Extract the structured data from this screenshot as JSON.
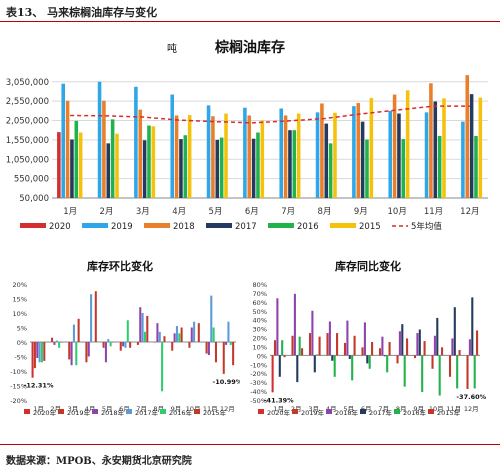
{
  "header": {
    "caption": "表13、 马来棕榈油库存与变化"
  },
  "footer": {
    "source": "数据来源：MPOB、永安期货北京研究院"
  },
  "chart_data": [
    {
      "type": "bar",
      "title": "棕榈油库存",
      "unit": "吨",
      "categories": [
        "1月",
        "2月",
        "3月",
        "4月",
        "5月",
        "6月",
        "7月",
        "8月",
        "9月",
        "10月",
        "11月",
        "12月"
      ],
      "ylim": [
        50000,
        3250000
      ],
      "yticks": [
        50000,
        550000,
        1050000,
        1550000,
        2050000,
        2550000,
        3050000
      ],
      "yticklabels": [
        "50,000",
        "550,000",
        "1,050,000",
        "1,550,000",
        "2,050,000",
        "2,550,000",
        "3,050,000"
      ],
      "legend_position": "bottom",
      "series": [
        {
          "name": "2020",
          "color": "#d42e2e",
          "type": "bar",
          "values": [
            1750000,
            null,
            null,
            null,
            null,
            null,
            null,
            null,
            null,
            null,
            null,
            null
          ]
        },
        {
          "name": "2019",
          "color": "#2ea6e8",
          "type": "bar",
          "values": [
            3000000,
            3050000,
            2920000,
            2720000,
            2440000,
            2380000,
            2360000,
            2260000,
            2420000,
            2300000,
            2260000,
            2020000
          ]
        },
        {
          "name": "2018",
          "color": "#e97f2a",
          "type": "bar",
          "values": [
            2560000,
            2560000,
            2330000,
            2180000,
            2160000,
            2180000,
            2180000,
            2490000,
            2500000,
            2720000,
            3010000,
            3220000
          ]
        },
        {
          "name": "2017",
          "color": "#243a5e",
          "type": "bar",
          "values": [
            1560000,
            1460000,
            1540000,
            1570000,
            1550000,
            1580000,
            1800000,
            1970000,
            2020000,
            2230000,
            2540000,
            2730000
          ]
        },
        {
          "name": "2016",
          "color": "#22b24c",
          "type": "bar",
          "values": [
            2040000,
            2080000,
            1920000,
            1670000,
            1610000,
            1740000,
            1800000,
            1460000,
            1560000,
            1570000,
            1650000,
            1650000
          ]
        },
        {
          "name": "2015",
          "color": "#f4c20d",
          "type": "bar",
          "values": [
            1740000,
            1710000,
            1900000,
            2190000,
            2230000,
            2050000,
            2230000,
            2250000,
            2630000,
            2830000,
            2620000,
            2640000
          ]
        },
        {
          "name": "5年均值",
          "color": "#d42e2e",
          "type": "line",
          "dashed": true,
          "values": [
            2180000,
            2170000,
            2140000,
            2060000,
            2020000,
            1990000,
            2040000,
            2100000,
            2220000,
            2320000,
            2420000,
            2420000
          ]
        }
      ]
    },
    {
      "type": "bar",
      "title": "库存环比变化",
      "categories": [
        "1月",
        "2月",
        "3月",
        "4月",
        "5月",
        "6月",
        "7月",
        "8月",
        "9月",
        "10月",
        "11月",
        "12月"
      ],
      "ylim": [
        -0.2,
        0.2
      ],
      "yticks": [
        -0.2,
        -0.15,
        -0.1,
        -0.05,
        0.0,
        0.05,
        0.1,
        0.15,
        0.2
      ],
      "yticklabels": [
        "-20%",
        "-15%",
        "-10%",
        "-5%",
        "0%",
        "5%",
        "10%",
        "15%",
        "20%"
      ],
      "legend_position": "bottom",
      "annotations": [
        {
          "text": "-12.31%",
          "category": "1月",
          "value": -0.1231
        },
        {
          "text": "-10.99%",
          "category": "12月",
          "value": -0.1099
        }
      ],
      "series": [
        {
          "name": "2020年",
          "color": "#d42e2e",
          "values": [
            -0.1231,
            null,
            null,
            null,
            null,
            null,
            null,
            null,
            null,
            null,
            null,
            null
          ]
        },
        {
          "name": "2019年",
          "color": "#c0392b",
          "values": [
            -0.09,
            0.015,
            -0.06,
            -0.07,
            -0.02,
            -0.03,
            -0.01,
            0.0,
            -0.03,
            -0.02,
            -0.04,
            -0.1099
          ]
        },
        {
          "name": "2018年",
          "color": "#8e44ad",
          "values": [
            -0.055,
            -0.01,
            -0.08,
            -0.05,
            -0.07,
            -0.015,
            0.12,
            0.065,
            0.03,
            0.05,
            -0.045,
            -0.01
          ]
        },
        {
          "name": "2017年",
          "color": "#5b9bd5",
          "values": [
            -0.07,
            0.005,
            0.06,
            0.165,
            0.01,
            -0.02,
            0.1,
            0.035,
            0.055,
            0.07,
            0.16,
            0.07
          ]
        },
        {
          "name": "2016年",
          "color": "#2ecc71",
          "values": [
            -0.07,
            -0.02,
            -0.08,
            0.0,
            -0.015,
            0.075,
            0.035,
            -0.17,
            0.03,
            0.0,
            0.05,
            -0.01
          ]
        },
        {
          "name": "2015年",
          "color": "#c0392b",
          "values": [
            -0.065,
            0.0,
            0.08,
            0.175,
            0.0,
            -0.02,
            0.09,
            0.02,
            0.05,
            0.065,
            -0.07,
            -0.08
          ]
        }
      ]
    },
    {
      "type": "bar",
      "title": "库存同比变化",
      "categories": [
        "1月",
        "2月",
        "3月",
        "4月",
        "5月",
        "6月",
        "7月",
        "8月",
        "9月",
        "10月",
        "11月",
        "12月"
      ],
      "ylim": [
        -0.5,
        0.8
      ],
      "yticks": [
        -0.5,
        -0.4,
        -0.3,
        -0.2,
        -0.1,
        0.0,
        0.1,
        0.2,
        0.3,
        0.4,
        0.5,
        0.6,
        0.7,
        0.8
      ],
      "yticklabels": [
        "-50%",
        "-40%",
        "-30%",
        "-20%",
        "-10%",
        "0%",
        "10%",
        "20%",
        "30%",
        "40%",
        "50%",
        "60%",
        "70%",
        "80%"
      ],
      "legend_position": "bottom",
      "annotations": [
        {
          "text": "-41.39%",
          "category": "1月",
          "value": -0.4139
        },
        {
          "text": "-37.60%",
          "category": "12月",
          "value": -0.376
        }
      ],
      "series": [
        {
          "name": "2020年",
          "color": "#d42e2e",
          "values": [
            -0.4139,
            null,
            null,
            null,
            null,
            null,
            null,
            null,
            null,
            null,
            null,
            null
          ]
        },
        {
          "name": "2019年",
          "color": "#c0392b",
          "values": [
            0.17,
            0.22,
            0.25,
            0.25,
            0.14,
            0.09,
            0.08,
            -0.09,
            -0.03,
            -0.15,
            -0.24,
            -0.376
          ]
        },
        {
          "name": "2018年",
          "color": "#8e44ad",
          "values": [
            0.64,
            0.69,
            0.5,
            0.38,
            0.39,
            0.37,
            0.21,
            0.27,
            0.25,
            0.22,
            0.19,
            0.18
          ]
        },
        {
          "name": "2017年",
          "color": "#243a5e",
          "values": [
            -0.24,
            -0.3,
            -0.19,
            -0.06,
            -0.04,
            -0.09,
            -0.01,
            0.35,
            0.29,
            0.42,
            0.54,
            0.65
          ]
        },
        {
          "name": "2016年",
          "color": "#22b24c",
          "values": [
            0.17,
            0.21,
            0.01,
            -0.24,
            -0.28,
            -0.15,
            -0.19,
            -0.35,
            -0.41,
            -0.45,
            -0.37,
            -0.37
          ]
        },
        {
          "name": "2015年",
          "color": "#c0392b",
          "values": [
            -0.02,
            0.08,
            0.21,
            0.25,
            0.22,
            0.15,
            0.15,
            0.19,
            0.16,
            0.09,
            0.06,
            0.28
          ]
        }
      ]
    }
  ]
}
